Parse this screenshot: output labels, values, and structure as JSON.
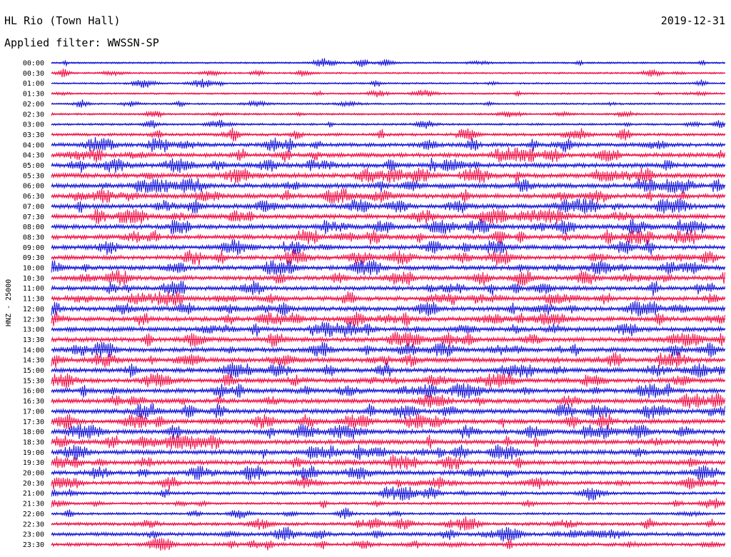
{
  "header": {
    "station": "HL Rio (Town Hall)",
    "date": "2019-12-31",
    "filter": "Applied filter: WWSSN-SP"
  },
  "colors": {
    "blue": "#1a1ad8",
    "red": "#f0144a",
    "text": "#000000"
  },
  "chart_data": {
    "type": "line",
    "title": "HL Rio (Town Hall)",
    "ylabel": "HNZ - 25000",
    "xlabel": "",
    "series_colors_alternating": [
      "blue",
      "red"
    ],
    "rows": [
      {
        "label": "00:00",
        "activity": 0.25
      },
      {
        "label": "00:30",
        "activity": 0.25
      },
      {
        "label": "01:00",
        "activity": 0.25
      },
      {
        "label": "01:30",
        "activity": 0.25
      },
      {
        "label": "02:00",
        "activity": 0.25
      },
      {
        "label": "02:30",
        "activity": 0.3
      },
      {
        "label": "03:00",
        "activity": 0.35
      },
      {
        "label": "03:30",
        "activity": 0.55
      },
      {
        "label": "04:00",
        "activity": 0.8
      },
      {
        "label": "04:30",
        "activity": 0.9
      },
      {
        "label": "05:00",
        "activity": 1.0
      },
      {
        "label": "05:30",
        "activity": 1.0
      },
      {
        "label": "06:00",
        "activity": 1.0
      },
      {
        "label": "06:30",
        "activity": 1.0
      },
      {
        "label": "07:00",
        "activity": 1.0
      },
      {
        "label": "07:30",
        "activity": 1.0
      },
      {
        "label": "08:00",
        "activity": 1.0
      },
      {
        "label": "08:30",
        "activity": 1.0
      },
      {
        "label": "09:00",
        "activity": 0.95
      },
      {
        "label": "09:30",
        "activity": 0.95
      },
      {
        "label": "10:00",
        "activity": 0.95
      },
      {
        "label": "10:30",
        "activity": 0.95
      },
      {
        "label": "11:00",
        "activity": 0.95
      },
      {
        "label": "11:30",
        "activity": 0.95
      },
      {
        "label": "12:00",
        "activity": 1.0
      },
      {
        "label": "12:30",
        "activity": 1.0
      },
      {
        "label": "13:00",
        "activity": 1.0
      },
      {
        "label": "13:30",
        "activity": 1.0
      },
      {
        "label": "14:00",
        "activity": 1.0
      },
      {
        "label": "14:30",
        "activity": 1.0
      },
      {
        "label": "15:00",
        "activity": 1.0
      },
      {
        "label": "15:30",
        "activity": 1.0
      },
      {
        "label": "16:00",
        "activity": 1.0
      },
      {
        "label": "16:30",
        "activity": 1.0
      },
      {
        "label": "17:00",
        "activity": 1.0
      },
      {
        "label": "17:30",
        "activity": 1.0
      },
      {
        "label": "18:00",
        "activity": 1.0
      },
      {
        "label": "18:30",
        "activity": 1.0
      },
      {
        "label": "19:00",
        "activity": 1.0
      },
      {
        "label": "19:30",
        "activity": 0.95
      },
      {
        "label": "20:00",
        "activity": 0.9
      },
      {
        "label": "20:30",
        "activity": 0.75
      },
      {
        "label": "21:00",
        "activity": 0.6
      },
      {
        "label": "21:30",
        "activity": 0.45
      },
      {
        "label": "22:00",
        "activity": 0.4
      },
      {
        "label": "22:30",
        "activity": 0.65
      },
      {
        "label": "23:00",
        "activity": 0.75
      },
      {
        "label": "23:30",
        "activity": 0.7
      }
    ]
  }
}
